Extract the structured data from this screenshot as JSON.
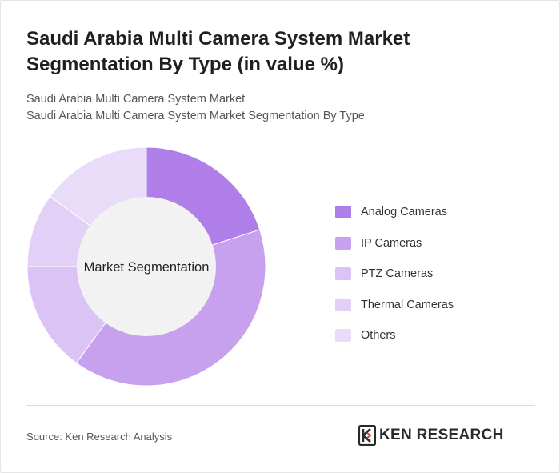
{
  "title": "Saudi Arabia Multi Camera System Market Segmentation By Type (in value %)",
  "subtitle_line1": "Saudi Arabia Multi Camera System Market",
  "subtitle_line2": "Saudi Arabia Multi Camera System Market Segmentation By Type",
  "chart_data": {
    "type": "pie",
    "style": "donut",
    "center_label": "Market Segmentation",
    "legend_position": "right",
    "categories": [
      "Analog Cameras",
      "IP Cameras",
      "PTZ Cameras",
      "Thermal Cameras",
      "Others"
    ],
    "values": [
      20,
      40,
      15,
      10,
      15
    ],
    "colors": [
      "#b07ee8",
      "#c7a0ee",
      "#dcc3f5",
      "#e3d0f7",
      "#e8dcf8"
    ]
  },
  "source": "Source: Ken Research Analysis",
  "logo": {
    "text": "KEN RESEARCH"
  }
}
